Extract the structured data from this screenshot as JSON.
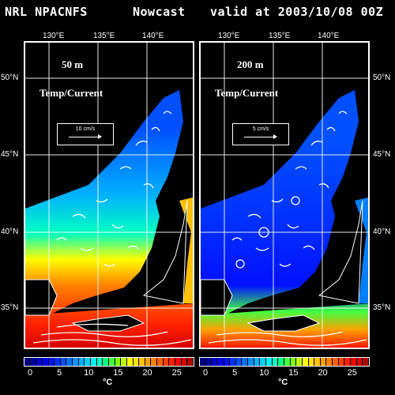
{
  "header": {
    "source": "NRL NPACNFS",
    "product": "Nowcast",
    "valid": "valid at 2003/10/08 00Z"
  },
  "axes": {
    "lon_ticks": [
      "130°E",
      "135°E",
      "140°E"
    ],
    "lat_ticks": [
      "50°N",
      "45°N",
      "40°N",
      "35°N"
    ]
  },
  "panels": [
    {
      "depth": "50 m",
      "variable": "Temp/Current",
      "scale_label": "10 cm/s"
    },
    {
      "depth": "200 m",
      "variable": "Temp/Current",
      "scale_label": "5 cm/s"
    }
  ],
  "colorbar": {
    "ticks": [
      "0",
      "5",
      "10",
      "15",
      "20",
      "25"
    ],
    "unit": "°C",
    "colors": [
      "#000080",
      "#0000a8",
      "#0000c8",
      "#0000e8",
      "#0010ff",
      "#0030ff",
      "#0050ff",
      "#0070ff",
      "#0090ff",
      "#00b0ff",
      "#00d0ff",
      "#00f0f0",
      "#00ffc0",
      "#00ff80",
      "#40ff40",
      "#80ff00",
      "#c0ff00",
      "#ffff00",
      "#ffe000",
      "#ffc000",
      "#ffa000",
      "#ff8000",
      "#ff6000",
      "#ff4000",
      "#ff2000",
      "#f00000",
      "#d00000",
      "#b00000"
    ]
  }
}
